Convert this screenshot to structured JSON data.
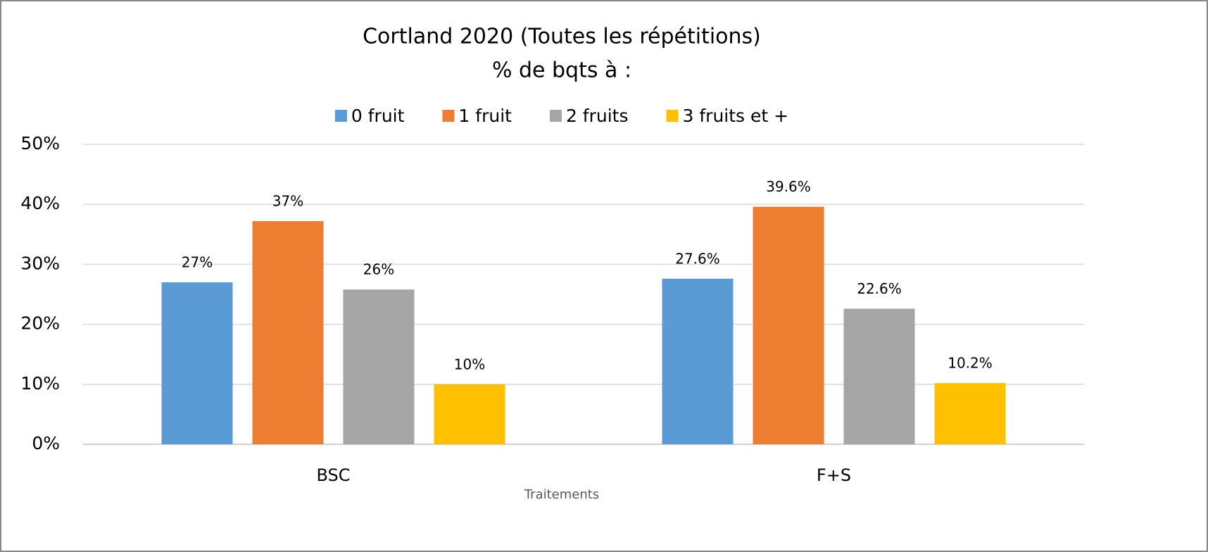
{
  "chart_data": {
    "type": "bar",
    "title": "Cortland 2020 (Toutes les répétitions)",
    "subtitle": "% de bqts à :",
    "x_label": "Traitements",
    "categories": [
      "BSC",
      "F+S"
    ],
    "series": [
      {
        "name": "0 fruit",
        "color": "#5b9bd5",
        "values": [
          27,
          27.6
        ],
        "value_labels": [
          "27%",
          "27.6%"
        ]
      },
      {
        "name": "1 fruit",
        "color": "#ed7d31",
        "values": [
          37.2,
          39.6
        ],
        "value_labels": [
          "37%",
          "39.6%"
        ]
      },
      {
        "name": "2 fruits",
        "color": "#a5a5a5",
        "values": [
          25.8,
          22.6
        ],
        "value_labels": [
          "26%",
          "22.6%"
        ]
      },
      {
        "name": "3 fruits et +",
        "color": "#ffc000",
        "values": [
          10,
          10.2
        ],
        "value_labels": [
          "10%",
          "10.2%"
        ]
      }
    ],
    "ylim": [
      0,
      50
    ],
    "yticks": [
      {
        "value": 0,
        "label": "0%"
      },
      {
        "value": 10,
        "label": "10%"
      },
      {
        "value": 20,
        "label": "20%"
      },
      {
        "value": 30,
        "label": "30%"
      },
      {
        "value": 40,
        "label": "40%"
      },
      {
        "value": 50,
        "label": "50%"
      }
    ],
    "grid": true,
    "legend": "top"
  }
}
